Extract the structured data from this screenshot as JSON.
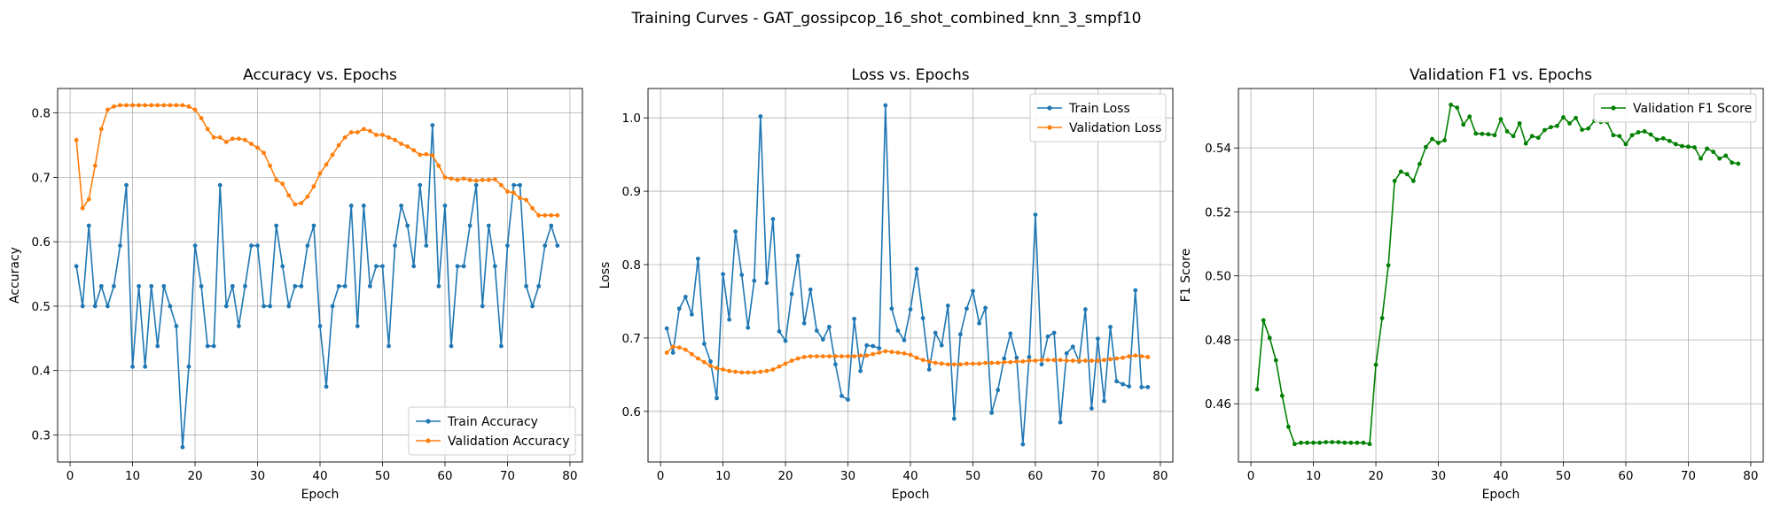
{
  "figure": {
    "suptitle": "Training Curves - GAT_gossipcop_16_shot_combined_knn_3_smpf10"
  },
  "colors": {
    "train": "#1f77b4",
    "validation": "#ff7f0e",
    "f1": "#008000"
  },
  "chart_data": [
    {
      "type": "line",
      "title": "Accuracy vs. Epochs",
      "xlabel": "Epoch",
      "ylabel": "Accuracy",
      "xlim": [
        -2,
        82
      ],
      "ylim": [
        0.258,
        0.838
      ],
      "xticks": [
        0,
        10,
        20,
        30,
        40,
        50,
        60,
        70,
        80
      ],
      "yticks": [
        0.3,
        0.4,
        0.5,
        0.6,
        0.7,
        0.8
      ],
      "grid": true,
      "legend": "bottom-right",
      "x": [
        1,
        2,
        3,
        4,
        5,
        6,
        7,
        8,
        9,
        10,
        11,
        12,
        13,
        14,
        15,
        16,
        17,
        18,
        19,
        20,
        21,
        22,
        23,
        24,
        25,
        26,
        27,
        28,
        29,
        30,
        31,
        32,
        33,
        34,
        35,
        36,
        37,
        38,
        39,
        40,
        41,
        42,
        43,
        44,
        45,
        46,
        47,
        48,
        49,
        50,
        51,
        52,
        53,
        54,
        55,
        56,
        57,
        58,
        59,
        60,
        61,
        62,
        63,
        64,
        65,
        66,
        67,
        68,
        69,
        70,
        71,
        72,
        73,
        74,
        75,
        76,
        77,
        78
      ],
      "series": [
        {
          "name": "Train Accuracy",
          "color": "#1f77b4",
          "values": [
            0.562,
            0.5,
            0.625,
            0.5,
            0.531,
            0.5,
            0.531,
            0.594,
            0.688,
            0.406,
            0.531,
            0.406,
            0.531,
            0.438,
            0.531,
            0.5,
            0.469,
            0.281,
            0.406,
            0.594,
            0.531,
            0.438,
            0.438,
            0.688,
            0.5,
            0.531,
            0.469,
            0.531,
            0.594,
            0.594,
            0.5,
            0.5,
            0.625,
            0.562,
            0.5,
            0.531,
            0.531,
            0.594,
            0.625,
            0.469,
            0.375,
            0.5,
            0.531,
            0.531,
            0.656,
            0.469,
            0.656,
            0.531,
            0.562,
            0.562,
            0.438,
            0.594,
            0.656,
            0.625,
            0.562,
            0.688,
            0.594,
            0.781,
            0.531,
            0.656,
            0.438,
            0.562,
            0.562,
            0.625,
            0.688,
            0.5,
            0.625,
            0.562,
            0.438,
            0.594,
            0.688,
            0.688,
            0.531,
            0.5,
            0.531,
            0.594,
            0.625,
            0.594
          ]
        },
        {
          "name": "Validation Accuracy",
          "color": "#ff7f0e",
          "values": [
            0.758,
            0.652,
            0.666,
            0.718,
            0.775,
            0.805,
            0.81,
            0.812,
            0.812,
            0.812,
            0.812,
            0.812,
            0.812,
            0.812,
            0.812,
            0.812,
            0.812,
            0.812,
            0.81,
            0.805,
            0.792,
            0.775,
            0.762,
            0.762,
            0.755,
            0.76,
            0.76,
            0.758,
            0.752,
            0.746,
            0.738,
            0.718,
            0.696,
            0.69,
            0.672,
            0.658,
            0.66,
            0.67,
            0.686,
            0.706,
            0.72,
            0.735,
            0.75,
            0.762,
            0.77,
            0.77,
            0.775,
            0.772,
            0.766,
            0.766,
            0.762,
            0.758,
            0.752,
            0.748,
            0.742,
            0.735,
            0.736,
            0.734,
            0.718,
            0.7,
            0.698,
            0.696,
            0.698,
            0.696,
            0.695,
            0.696,
            0.696,
            0.697,
            0.688,
            0.678,
            0.676,
            0.668,
            0.665,
            0.652,
            0.641,
            0.641,
            0.641,
            0.641
          ]
        }
      ]
    },
    {
      "type": "line",
      "title": "Loss vs. Epochs",
      "xlabel": "Epoch",
      "ylabel": "Loss",
      "xlim": [
        -2,
        82
      ],
      "ylim": [
        0.531,
        1.04
      ],
      "xticks": [
        0,
        10,
        20,
        30,
        40,
        50,
        60,
        70,
        80
      ],
      "yticks": [
        0.6,
        0.7,
        0.8,
        0.9,
        1.0
      ],
      "grid": true,
      "legend": "top-right",
      "x": [
        1,
        2,
        3,
        4,
        5,
        6,
        7,
        8,
        9,
        10,
        11,
        12,
        13,
        14,
        15,
        16,
        17,
        18,
        19,
        20,
        21,
        22,
        23,
        24,
        25,
        26,
        27,
        28,
        29,
        30,
        31,
        32,
        33,
        34,
        35,
        36,
        37,
        38,
        39,
        40,
        41,
        42,
        43,
        44,
        45,
        46,
        47,
        48,
        49,
        50,
        51,
        52,
        53,
        54,
        55,
        56,
        57,
        58,
        59,
        60,
        61,
        62,
        63,
        64,
        65,
        66,
        67,
        68,
        69,
        70,
        71,
        72,
        73,
        74,
        75,
        76,
        77,
        78
      ],
      "series": [
        {
          "name": "Train Loss",
          "color": "#1f77b4",
          "values": [
            0.713,
            0.68,
            0.74,
            0.756,
            0.732,
            0.808,
            0.692,
            0.668,
            0.618,
            0.787,
            0.725,
            0.845,
            0.786,
            0.714,
            0.778,
            1.002,
            0.775,
            0.862,
            0.709,
            0.696,
            0.76,
            0.812,
            0.72,
            0.766,
            0.71,
            0.698,
            0.715,
            0.664,
            0.621,
            0.616,
            0.726,
            0.655,
            0.69,
            0.689,
            0.686,
            1.017,
            0.74,
            0.71,
            0.697,
            0.739,
            0.794,
            0.727,
            0.657,
            0.707,
            0.69,
            0.744,
            0.59,
            0.705,
            0.74,
            0.764,
            0.72,
            0.741,
            0.598,
            0.629,
            0.672,
            0.706,
            0.673,
            0.555,
            0.674,
            0.868,
            0.664,
            0.702,
            0.707,
            0.585,
            0.679,
            0.688,
            0.668,
            0.739,
            0.604,
            0.699,
            0.614,
            0.715,
            0.641,
            0.637,
            0.634,
            0.765,
            0.633,
            0.633
          ]
        },
        {
          "name": "Validation Loss",
          "color": "#ff7f0e",
          "values": [
            0.68,
            0.688,
            0.687,
            0.684,
            0.678,
            0.672,
            0.667,
            0.662,
            0.659,
            0.657,
            0.655,
            0.654,
            0.653,
            0.653,
            0.653,
            0.654,
            0.655,
            0.657,
            0.661,
            0.665,
            0.669,
            0.672,
            0.674,
            0.675,
            0.675,
            0.675,
            0.675,
            0.675,
            0.675,
            0.675,
            0.675,
            0.676,
            0.676,
            0.678,
            0.68,
            0.682,
            0.681,
            0.68,
            0.679,
            0.677,
            0.673,
            0.67,
            0.668,
            0.666,
            0.665,
            0.664,
            0.664,
            0.664,
            0.665,
            0.665,
            0.665,
            0.666,
            0.666,
            0.666,
            0.667,
            0.667,
            0.668,
            0.668,
            0.669,
            0.669,
            0.67,
            0.67,
            0.67,
            0.67,
            0.669,
            0.669,
            0.669,
            0.669,
            0.669,
            0.669,
            0.67,
            0.671,
            0.672,
            0.673,
            0.675,
            0.676,
            0.675,
            0.674
          ]
        }
      ]
    },
    {
      "type": "line",
      "title": "Validation F1 vs. Epochs",
      "xlabel": "Epoch",
      "ylabel": "F1 Score",
      "xlim": [
        -2,
        82
      ],
      "ylim": [
        0.4418,
        0.5586
      ],
      "xticks": [
        0,
        10,
        20,
        30,
        40,
        50,
        60,
        70,
        80
      ],
      "yticks": [
        0.46,
        0.48,
        0.5,
        0.52,
        0.54
      ],
      "grid": true,
      "legend": "top-right",
      "x": [
        1,
        2,
        3,
        4,
        5,
        6,
        7,
        8,
        9,
        10,
        11,
        12,
        13,
        14,
        15,
        16,
        17,
        18,
        19,
        20,
        21,
        22,
        23,
        24,
        25,
        26,
        27,
        28,
        29,
        30,
        31,
        32,
        33,
        34,
        35,
        36,
        37,
        38,
        39,
        40,
        41,
        42,
        43,
        44,
        45,
        46,
        47,
        48,
        49,
        50,
        51,
        52,
        53,
        54,
        55,
        56,
        57,
        58,
        59,
        60,
        61,
        62,
        63,
        64,
        65,
        66,
        67,
        68,
        69,
        70,
        71,
        72,
        73,
        74,
        75,
        76,
        77,
        78
      ],
      "series": [
        {
          "name": "Validation F1 Score",
          "color": "#008000",
          "values": [
            0.4645,
            0.4861,
            0.4806,
            0.4736,
            0.4625,
            0.4528,
            0.4474,
            0.4478,
            0.4478,
            0.4478,
            0.4478,
            0.448,
            0.448,
            0.448,
            0.4478,
            0.4478,
            0.4478,
            0.4478,
            0.4474,
            0.4722,
            0.4868,
            0.5033,
            0.5297,
            0.5326,
            0.5318,
            0.5297,
            0.535,
            0.5403,
            0.5428,
            0.5416,
            0.5424,
            0.5535,
            0.5526,
            0.5473,
            0.5498,
            0.5445,
            0.5444,
            0.5443,
            0.544,
            0.549,
            0.5452,
            0.5437,
            0.5477,
            0.5414,
            0.5437,
            0.5432,
            0.5456,
            0.5465,
            0.5469,
            0.5496,
            0.5477,
            0.5494,
            0.5457,
            0.5461,
            0.5485,
            0.5481,
            0.5481,
            0.544,
            0.5437,
            0.5412,
            0.544,
            0.5449,
            0.5452,
            0.5442,
            0.5426,
            0.543,
            0.5422,
            0.5412,
            0.5406,
            0.5404,
            0.5402,
            0.5367,
            0.5398,
            0.5388,
            0.5367,
            0.5376,
            0.5354,
            0.5351
          ]
        }
      ]
    }
  ]
}
